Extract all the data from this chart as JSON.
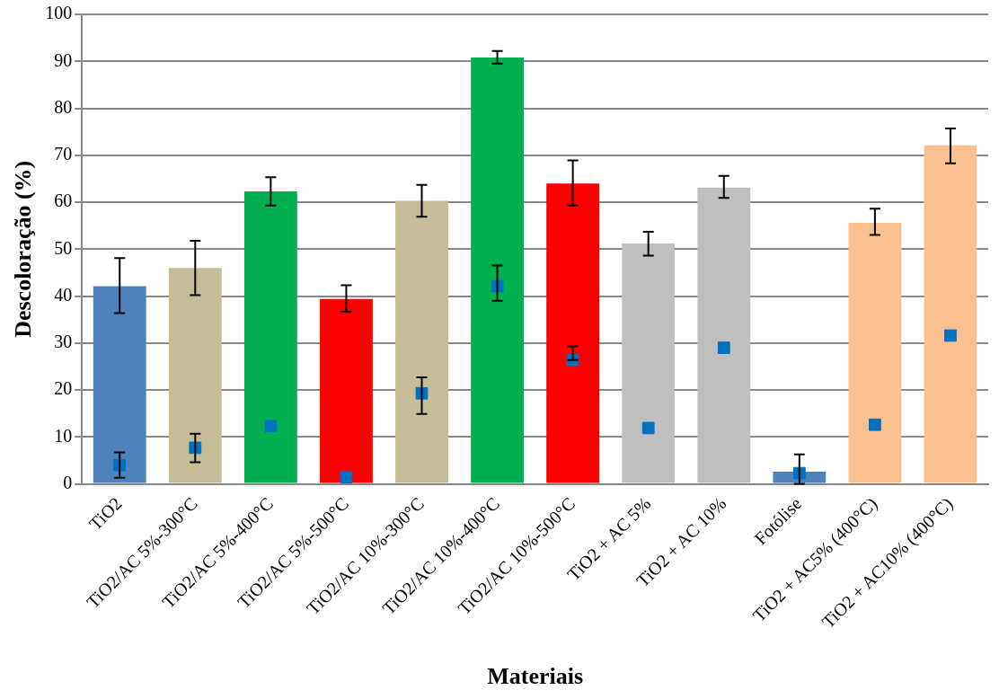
{
  "chart_data": {
    "type": "bar",
    "xlabel": "Materiais",
    "ylabel": "Descoloração (%)",
    "categories": [
      "TiO2",
      "TiO2/AC 5%-300°C",
      "TiO2/AC 5%-400°C",
      "TiO2/AC 5%-500°C",
      "TiO2/AC 10%-300°C",
      "TiO2/AC 10%-400°C",
      "TiO2/AC 10%-500°C",
      "TiO2 + AC 5%",
      "TiO2 + AC 10%",
      "Fotólise",
      "TiO2 + AC5% (400°C)",
      "TiO2 + AC10% (400°C)"
    ],
    "ylim": [
      0,
      100
    ],
    "yticks": [
      0,
      10,
      20,
      30,
      40,
      50,
      60,
      70,
      80,
      90,
      100
    ],
    "grid": "y",
    "legend": false,
    "series": [
      {
        "colors": [
          "#4f81bd",
          "#c4bd97",
          "#00b050",
          "#ff0000",
          "#c4bd97",
          "#00b050",
          "#ff0000",
          "#bfbfbf",
          "#bfbfbf",
          "#4f81bd",
          "#fac090",
          "#fac090"
        ],
        "values": [
          42.1,
          46.0,
          62.3,
          39.4,
          60.3,
          90.8,
          64.0,
          51.2,
          63.1,
          2.6,
          55.6,
          72.1
        ],
        "errors": [
          [
            36.4,
            48.1
          ],
          [
            40.2,
            51.8
          ],
          [
            59.3,
            65.3
          ],
          [
            36.7,
            42.3
          ],
          [
            56.9,
            63.7
          ],
          [
            89.5,
            92.2
          ],
          [
            59.3,
            68.9
          ],
          [
            48.6,
            53.7
          ],
          [
            60.9,
            65.6
          ],
          [
            0,
            6.3
          ],
          [
            53.0,
            58.6
          ],
          [
            68.3,
            75.7
          ]
        ]
      },
      {
        "type": "scatter",
        "color": "#0070c0",
        "marker": "square",
        "x": [
          "TiO2",
          "TiO2/AC 5%-300°C",
          "TiO2/AC 5%-400°C",
          "TiO2/AC 5%-500°C",
          "TiO2/AC 10%-300°C",
          "TiO2/AC 10%-400°C",
          "TiO2/AC 10%-500°C",
          "TiO2 + AC 5%",
          "TiO2 + AC 10%",
          "Fotólise",
          "TiO2 + AC5% (400°C)",
          "TiO2 + AC10% (400°C)"
        ],
        "values": [
          4.0,
          7.7,
          12.3,
          1.4,
          19.3,
          42.1,
          26.4,
          11.9,
          29.0,
          2.3,
          12.6,
          31.6
        ],
        "errors": [
          [
            1.3,
            6.7
          ],
          [
            4.6,
            10.7
          ],
          null,
          null,
          [
            14.9,
            22.7
          ],
          [
            39.0,
            46.5
          ],
          [
            26.4,
            29.3
          ],
          null,
          null,
          null,
          null,
          null
        ]
      }
    ]
  }
}
